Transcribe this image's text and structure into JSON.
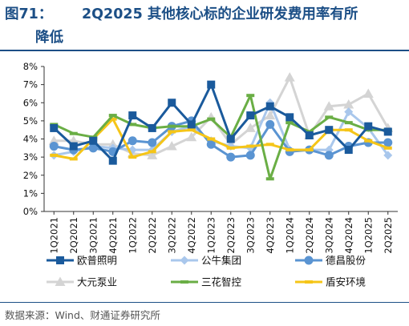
{
  "title": {
    "number": "图71：",
    "text_line1": "2Q2025 其他核心标的企业研发费用率有所",
    "text_line2": "降低"
  },
  "source": "数据来源：Wind、财通证券研究所",
  "colors": {
    "title": "#1c4f86",
    "欧普照明": "#1a5a9c",
    "公牛集团": "#a9c7ec",
    "德昌股份": "#5a94d2",
    "大元泵业": "#d4d4d4",
    "三花智控": "#6aae45",
    "盾安环境": "#f5c518"
  },
  "chart_data": {
    "type": "line",
    "categories": [
      "1Q2021",
      "2Q2021",
      "3Q2021",
      "4Q2021",
      "1Q2022",
      "2Q2022",
      "3Q2022",
      "4Q2022",
      "1Q2023",
      "2Q2023",
      "3Q2023",
      "4Q2023",
      "1Q2024",
      "2Q2024",
      "3Q2024",
      "4Q2024",
      "1Q2025",
      "2Q2025"
    ],
    "ylim": [
      0,
      8
    ],
    "yticks": [
      "0%",
      "1%",
      "2%",
      "3%",
      "4%",
      "5%",
      "6%",
      "7%",
      "8%"
    ],
    "grid": false,
    "legend_position": "bottom",
    "series": [
      {
        "name": "欧普照明",
        "marker": "square",
        "values": [
          4.6,
          3.6,
          3.9,
          2.8,
          5.3,
          4.6,
          6.0,
          4.8,
          7.0,
          4.0,
          5.3,
          5.8,
          5.2,
          4.2,
          4.5,
          3.4,
          4.7,
          4.4
        ]
      },
      {
        "name": "公牛集团",
        "marker": "diamond",
        "values": [
          3.1,
          3.3,
          3.6,
          3.5,
          3.4,
          3.4,
          4.4,
          4.7,
          3.9,
          3.6,
          3.5,
          6.0,
          3.4,
          3.4,
          3.4,
          5.5,
          4.6,
          3.1
        ]
      },
      {
        "name": "德昌股份",
        "marker": "circle",
        "values": [
          3.6,
          3.4,
          3.5,
          3.3,
          3.9,
          3.8,
          4.7,
          5.0,
          3.7,
          3.0,
          3.1,
          4.8,
          3.3,
          3.4,
          3.1,
          3.6,
          3.8,
          3.8
        ]
      },
      {
        "name": "大元泵业",
        "marker": "triangle",
        "values": [
          3.9,
          3.9,
          3.7,
          3.7,
          3.2,
          3.1,
          3.6,
          4.1,
          5.2,
          3.7,
          4.6,
          5.3,
          7.4,
          4.2,
          5.8,
          5.9,
          6.5,
          4.6
        ]
      },
      {
        "name": "三花智控",
        "marker": "dash",
        "values": [
          4.8,
          4.3,
          4.1,
          5.3,
          4.8,
          4.6,
          4.7,
          4.7,
          5.1,
          4.1,
          6.4,
          1.8,
          4.9,
          4.4,
          5.2,
          4.9,
          4.5,
          4.5
        ]
      },
      {
        "name": "盾安环境",
        "marker": "dash",
        "values": [
          3.1,
          2.9,
          4.0,
          5.1,
          3.0,
          3.3,
          4.4,
          4.5,
          4.0,
          3.5,
          3.6,
          3.7,
          3.4,
          3.4,
          4.5,
          4.5,
          3.9,
          3.5
        ]
      }
    ]
  }
}
